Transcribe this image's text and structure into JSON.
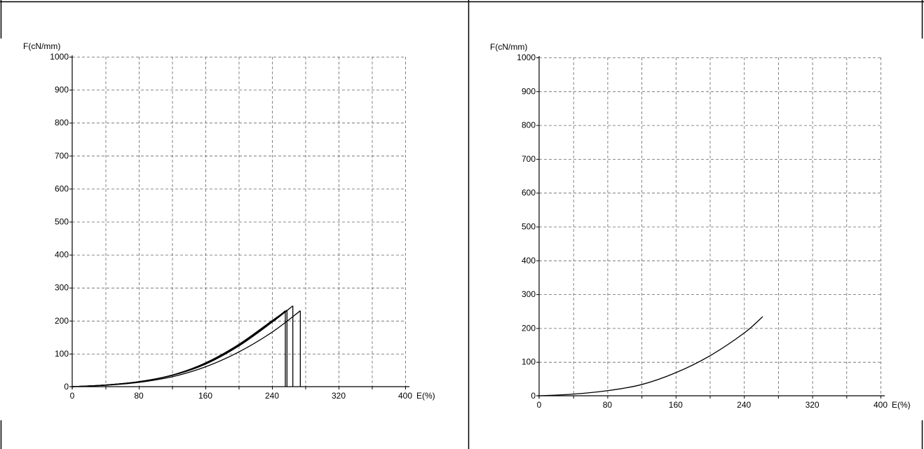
{
  "chart_data": [
    {
      "type": "line",
      "ylabel": "F(cN/mm)",
      "xlabel": "E(%)",
      "xlim": [
        0,
        400
      ],
      "ylim": [
        0,
        1000
      ],
      "xticks": [
        "0",
        "80",
        "160",
        "240",
        "320",
        "400"
      ],
      "yticks": [
        "0",
        "100",
        "200",
        "300",
        "400",
        "500",
        "600",
        "700",
        "800",
        "900",
        "1000"
      ],
      "grid": true,
      "series": [
        {
          "x": [
            0,
            40,
            80,
            120,
            160,
            200,
            240,
            256,
            256
          ],
          "y": [
            0,
            5,
            15,
            35,
            70,
            125,
            198,
            230,
            0
          ]
        },
        {
          "x": [
            0,
            40,
            80,
            120,
            160,
            200,
            240,
            258,
            258
          ],
          "y": [
            0,
            5,
            15,
            35,
            72,
            128,
            200,
            232,
            0
          ]
        },
        {
          "x": [
            0,
            40,
            80,
            120,
            160,
            200,
            240,
            265,
            265
          ],
          "y": [
            0,
            5,
            15,
            34,
            68,
            123,
            195,
            245,
            0
          ]
        },
        {
          "x": [
            0,
            40,
            80,
            120,
            160,
            200,
            240,
            274,
            274
          ],
          "y": [
            0,
            4,
            13,
            30,
            60,
            105,
            165,
            230,
            0
          ]
        }
      ]
    },
    {
      "type": "line",
      "ylabel": "F(cN/mm)",
      "xlabel": "E(%)",
      "xlim": [
        0,
        400
      ],
      "ylim": [
        0,
        1000
      ],
      "xticks": [
        "0",
        "80",
        "160",
        "240",
        "320",
        "400"
      ],
      "yticks": [
        "0",
        "100",
        "200",
        "300",
        "400",
        "500",
        "600",
        "700",
        "800",
        "900",
        "1000"
      ],
      "grid": true,
      "series": [
        {
          "x": [
            0,
            40,
            80,
            120,
            160,
            200,
            240,
            262
          ],
          "y": [
            0,
            5,
            15,
            33,
            68,
            118,
            185,
            234
          ]
        }
      ]
    }
  ]
}
